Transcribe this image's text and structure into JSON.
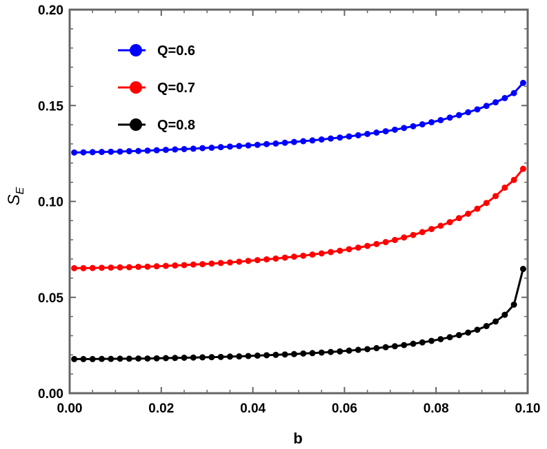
{
  "chart_data": {
    "type": "line",
    "xlabel": "b",
    "ylabel": "S",
    "ylabel_subscript": "E",
    "xlim": [
      0.0,
      0.1
    ],
    "ylim": [
      0.0,
      0.2
    ],
    "x_ticks": [
      "0.00",
      "0.02",
      "0.04",
      "0.06",
      "0.08",
      "0.10"
    ],
    "y_ticks": [
      "0.00",
      "0.05",
      "0.10",
      "0.15",
      "0.20"
    ],
    "grid": false,
    "legend_position": "top-left",
    "x": [
      0.001,
      0.003,
      0.005,
      0.007,
      0.009,
      0.011,
      0.013,
      0.015,
      0.017,
      0.019,
      0.021,
      0.023,
      0.025,
      0.027,
      0.029,
      0.031,
      0.033,
      0.035,
      0.037,
      0.039,
      0.041,
      0.043,
      0.045,
      0.047,
      0.049,
      0.051,
      0.053,
      0.055,
      0.057,
      0.059,
      0.061,
      0.063,
      0.065,
      0.067,
      0.069,
      0.071,
      0.073,
      0.075,
      0.077,
      0.079,
      0.081,
      0.083,
      0.085,
      0.087,
      0.089,
      0.091,
      0.093,
      0.095,
      0.097,
      0.099
    ],
    "series": [
      {
        "name": "Q=0.6",
        "color": "#0000ff",
        "values": [
          0.1255,
          0.1256,
          0.1257,
          0.1258,
          0.1259,
          0.126,
          0.1262,
          0.1263,
          0.1265,
          0.1267,
          0.1269,
          0.1271,
          0.1273,
          0.1275,
          0.1278,
          0.128,
          0.1283,
          0.1286,
          0.1289,
          0.1292,
          0.1295,
          0.1299,
          0.1302,
          0.1306,
          0.131,
          0.1314,
          0.1318,
          0.1323,
          0.1328,
          0.1333,
          0.1339,
          0.1345,
          0.1352,
          0.1359,
          0.1366,
          0.1374,
          0.1383,
          0.1392,
          0.1402,
          0.1413,
          0.1424,
          0.1437,
          0.145,
          0.1465,
          0.148,
          0.1498,
          0.1517,
          0.1539,
          0.1565,
          0.1618
        ]
      },
      {
        "name": "Q=0.7",
        "color": "#ff0000",
        "values": [
          0.0652,
          0.0652,
          0.0653,
          0.0654,
          0.0655,
          0.0656,
          0.0657,
          0.0659,
          0.066,
          0.0662,
          0.0664,
          0.0666,
          0.0668,
          0.0671,
          0.0673,
          0.0676,
          0.0679,
          0.0682,
          0.0686,
          0.069,
          0.0694,
          0.0698,
          0.0702,
          0.0707,
          0.0712,
          0.0717,
          0.0723,
          0.0729,
          0.0736,
          0.0743,
          0.0751,
          0.0759,
          0.0768,
          0.0778,
          0.0788,
          0.0799,
          0.0812,
          0.0825,
          0.084,
          0.0856,
          0.0873,
          0.0892,
          0.0913,
          0.0936,
          0.0962,
          0.0992,
          0.1028,
          0.1072,
          0.1112,
          0.117
        ]
      },
      {
        "name": "Q=0.8",
        "color": "#000000",
        "values": [
          0.0178,
          0.0178,
          0.0178,
          0.0179,
          0.0179,
          0.018,
          0.018,
          0.0181,
          0.0181,
          0.0182,
          0.0183,
          0.0184,
          0.0185,
          0.0186,
          0.0187,
          0.0188,
          0.0189,
          0.0191,
          0.0192,
          0.0194,
          0.0196,
          0.0198,
          0.02,
          0.0202,
          0.0204,
          0.0207,
          0.0209,
          0.0212,
          0.0215,
          0.0218,
          0.0222,
          0.0226,
          0.023,
          0.0235,
          0.024,
          0.0245,
          0.0251,
          0.0258,
          0.0265,
          0.0273,
          0.0282,
          0.0292,
          0.0303,
          0.0316,
          0.0331,
          0.035,
          0.0374,
          0.0409,
          0.0462,
          0.0648
        ]
      }
    ]
  }
}
